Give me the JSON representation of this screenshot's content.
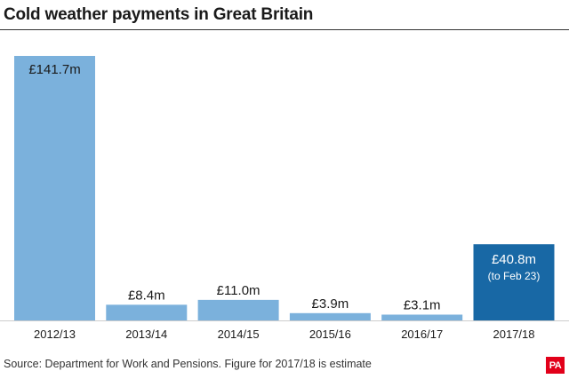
{
  "chart_data": {
    "type": "bar",
    "title": "Cold weather payments in Great Britain",
    "categories": [
      "2012/13",
      "2013/14",
      "2014/15",
      "2015/16",
      "2016/17",
      "2017/18"
    ],
    "values": [
      141.7,
      8.4,
      11.0,
      3.9,
      3.1,
      40.8
    ],
    "value_labels": [
      "£141.7m",
      "£8.4m",
      "£11.0m",
      "£3.9m",
      "£3.1m",
      "£40.8m"
    ],
    "sub_labels": [
      "",
      "",
      "",
      "",
      "",
      "(to Feb 23)"
    ],
    "unit": "£m",
    "ylim": [
      0,
      141.7
    ],
    "grid": false,
    "colors": {
      "bar": "#7bb1dc",
      "highlight_bar": "#1868a5",
      "axis_line": "#cccccc"
    },
    "highlight_index": 5
  },
  "source": "Source: Department for Work and Pensions. Figure for 2017/18 is estimate",
  "logo": "PA"
}
